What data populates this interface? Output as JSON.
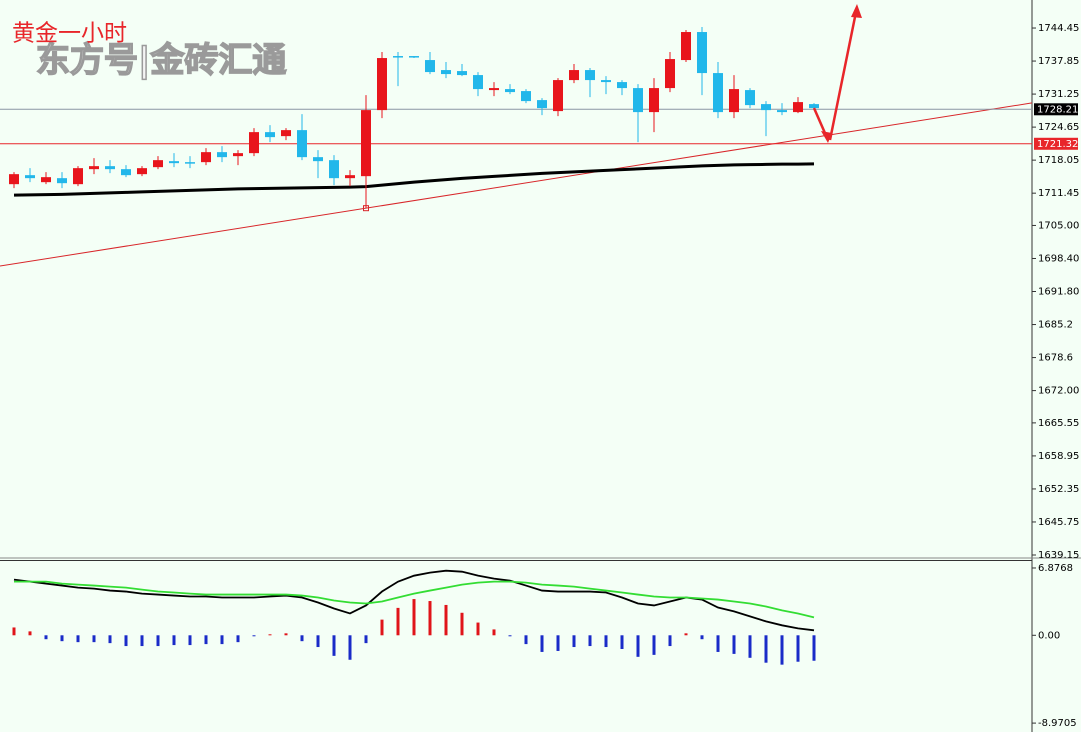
{
  "chart_data": [
    {
      "type": "candlestick",
      "title": "黄金一小时",
      "watermark": "东方号|金砖汇通",
      "up_color": "#e8151c",
      "down_color": "#22b7ea",
      "open": [
        1713.25,
        1715.05,
        1713.65,
        1714.45,
        1713.25,
        1716.25,
        1716.85,
        1716.25,
        1715.25,
        1716.65,
        1717.85,
        1717.65,
        1717.65,
        1719.65,
        1718.85,
        1719.45,
        1723.65,
        1722.85,
        1724.05,
        1718.65,
        1718.05,
        1714.45,
        1714.85,
        1728.05,
        1738.85,
        1738.85,
        1738.05,
        1736.05,
        1735.85,
        1735.05,
        1732.05,
        1732.25,
        1731.85,
        1730.05,
        1727.85,
        1734.05,
        1736.05,
        1734.05,
        1733.65,
        1732.45,
        1727.65,
        1732.45,
        1738.05,
        1743.65,
        1735.45,
        1727.65,
        1732.05,
        1729.25,
        1728.05,
        1727.65,
        1729.25
      ],
      "high": [
        1715.65,
        1716.45,
        1715.65,
        1715.65,
        1716.85,
        1718.45,
        1718.05,
        1717.05,
        1716.85,
        1718.85,
        1719.45,
        1718.85,
        1720.45,
        1720.85,
        1720.05,
        1724.45,
        1725.05,
        1724.45,
        1727.25,
        1720.05,
        1719.05,
        1716.05,
        1731.05,
        1739.65,
        1739.65,
        1738.85,
        1739.65,
        1737.65,
        1737.25,
        1735.65,
        1733.65,
        1733.25,
        1732.25,
        1730.45,
        1734.45,
        1737.25,
        1736.45,
        1734.85,
        1734.05,
        1733.25,
        1734.45,
        1739.65,
        1744.05,
        1744.65,
        1737.65,
        1735.05,
        1732.45,
        1729.85,
        1729.45,
        1730.65,
        1729.45
      ],
      "low": [
        1712.45,
        1713.65,
        1713.25,
        1712.45,
        1712.85,
        1715.25,
        1715.45,
        1714.65,
        1714.85,
        1716.25,
        1716.65,
        1716.45,
        1717.05,
        1717.65,
        1717.05,
        1718.85,
        1721.65,
        1722.05,
        1718.05,
        1714.45,
        1713.05,
        1712.85,
        1708.45,
        1726.45,
        1732.85,
        1738.45,
        1735.25,
        1734.45,
        1734.85,
        1730.85,
        1730.85,
        1731.25,
        1729.45,
        1727.05,
        1726.85,
        1733.45,
        1730.65,
        1731.25,
        1731.05,
        1721.65,
        1723.65,
        1731.65,
        1737.65,
        1731.05,
        1726.45,
        1726.45,
        1728.45,
        1722.85,
        1727.05,
        1727.45,
        1728.25
      ],
      "close": [
        1715.25,
        1714.45,
        1714.65,
        1713.45,
        1716.45,
        1716.85,
        1716.25,
        1715.05,
        1716.45,
        1718.05,
        1717.45,
        1717.45,
        1719.65,
        1718.65,
        1719.45,
        1723.65,
        1722.65,
        1724.05,
        1718.65,
        1717.85,
        1714.45,
        1715.05,
        1728.05,
        1738.45,
        1738.65,
        1738.65,
        1735.65,
        1735.25,
        1735.05,
        1732.25,
        1732.45,
        1731.65,
        1729.85,
        1728.45,
        1734.05,
        1736.05,
        1734.05,
        1733.65,
        1732.45,
        1727.65,
        1732.45,
        1738.25,
        1743.65,
        1735.45,
        1727.65,
        1732.25,
        1729.05,
        1728.05,
        1727.65,
        1729.65,
        1728.45
      ],
      "ma": {
        "color": "#000000",
        "values": [
          1711.05,
          1711.1,
          1711.15,
          1711.2,
          1711.3,
          1711.4,
          1711.5,
          1711.6,
          1711.7,
          1711.8,
          1711.9,
          1712.0,
          1712.1,
          1712.2,
          1712.3,
          1712.35,
          1712.4,
          1712.45,
          1712.5,
          1712.55,
          1712.6,
          1712.65,
          1712.75,
          1713.05,
          1713.35,
          1713.65,
          1713.9,
          1714.15,
          1714.4,
          1714.6,
          1714.8,
          1715.0,
          1715.2,
          1715.4,
          1715.55,
          1715.7,
          1715.85,
          1716.0,
          1716.15,
          1716.3,
          1716.45,
          1716.6,
          1716.75,
          1716.9,
          1717.0,
          1717.1,
          1717.15,
          1717.2,
          1717.25,
          1717.25,
          1717.3
        ]
      },
      "trendline": {
        "color": "#d8262a",
        "x": [
          22,
          50
        ],
        "values": [
          1708.45,
          1722.6
        ]
      },
      "price_lines": [
        {
          "value": 1728.21,
          "color": "#8a96a3",
          "label_bg": "#000000"
        },
        {
          "value": 1721.32,
          "color": "#e8262a",
          "label_bg": "#e8262a"
        }
      ],
      "ylim": [
        1638.75,
        1750.05
      ],
      "yticks": [
        1744.45,
        1737.85,
        1731.25,
        1724.65,
        1718.05,
        1711.45,
        {
          "value": 1705,
          "label": "1705.00"
        },
        {
          "value": 1698.4,
          "label": "1698.40"
        },
        {
          "value": 1691.8,
          "label": "1691.80"
        },
        1685.2,
        1678.6,
        {
          "value": 1672,
          "label": "1672.00"
        },
        1665.55,
        1658.95,
        1652.35,
        1645.75,
        1639.15
      ]
    },
    {
      "type": "macd",
      "hist_up_color": "#e0141a",
      "hist_down_color": "#1a2bc8",
      "histogram": [
        0.8,
        0.4,
        -0.4,
        -0.6,
        -0.7,
        -0.7,
        -0.8,
        -1.1,
        -1.1,
        -1.1,
        -1.0,
        -1.0,
        -0.9,
        -0.9,
        -0.7,
        -0.1,
        0.1,
        0.2,
        -0.6,
        -1.2,
        -2.1,
        -2.5,
        -0.8,
        1.6,
        2.8,
        3.7,
        3.5,
        3.1,
        2.3,
        1.3,
        0.6,
        -0.1,
        -0.9,
        -1.7,
        -1.6,
        -1.2,
        -1.1,
        -1.2,
        -1.4,
        -2.2,
        -2.0,
        -1.1,
        0.2,
        -0.4,
        -1.7,
        -1.9,
        -2.3,
        -2.8,
        -3.0,
        -2.7,
        -2.6
      ],
      "series": [
        {
          "color": "#000000",
          "values": [
            5.69,
            5.48,
            5.28,
            5.08,
            4.87,
            4.77,
            4.57,
            4.47,
            4.26,
            4.16,
            4.06,
            3.96,
            3.96,
            3.86,
            3.86,
            3.86,
            3.96,
            4.06,
            3.86,
            3.35,
            2.74,
            2.23,
            3.05,
            4.47,
            5.48,
            6.09,
            6.4,
            6.6,
            6.5,
            6.09,
            5.79,
            5.58,
            5.08,
            4.57,
            4.47,
            4.47,
            4.47,
            4.37,
            3.86,
            3.25,
            3.05,
            3.45,
            3.86,
            3.65,
            2.84,
            2.44,
            1.93,
            1.42,
            1.02,
            0.71,
            0.51
          ]
        },
        {
          "color": "#33dd33",
          "values": [
            5.48,
            5.48,
            5.48,
            5.28,
            5.18,
            5.08,
            4.97,
            4.87,
            4.67,
            4.47,
            4.37,
            4.26,
            4.16,
            4.16,
            4.16,
            4.16,
            4.16,
            4.16,
            4.06,
            3.86,
            3.55,
            3.35,
            3.25,
            3.45,
            3.86,
            4.26,
            4.57,
            4.87,
            5.18,
            5.38,
            5.48,
            5.48,
            5.38,
            5.18,
            5.08,
            4.97,
            4.77,
            4.57,
            4.37,
            4.16,
            3.96,
            3.86,
            3.86,
            3.76,
            3.65,
            3.45,
            3.25,
            2.94,
            2.54,
            2.23,
            1.83
          ]
        }
      ],
      "ylim": [
        -9.88,
        7.59
      ],
      "yticks": [
        6.8768,
        {
          "value": 0,
          "label": "0.00"
        },
        -8.9705
      ]
    }
  ]
}
